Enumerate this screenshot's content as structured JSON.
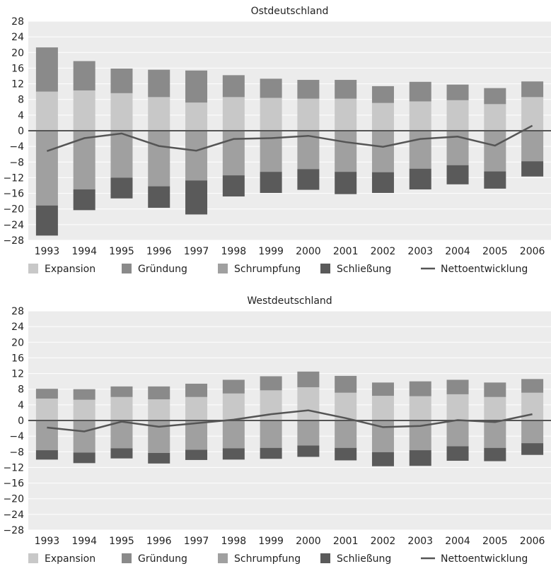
{
  "chart_data": [
    {
      "type": "bar",
      "title": "Ostdeutschland",
      "categories": [
        "1993",
        "1994",
        "1995",
        "1996",
        "1997",
        "1998",
        "1999",
        "2000",
        "2001",
        "2002",
        "2003",
        "2004",
        "2005",
        "2006"
      ],
      "ylim": [
        -28,
        28
      ],
      "yticks": [
        28,
        24,
        20,
        16,
        12,
        8,
        4,
        0,
        -4,
        -8,
        -12,
        -16,
        -20,
        -24,
        -28
      ],
      "stacked": true,
      "grid": true,
      "legend_position": "bottom",
      "series": [
        {
          "name": "Expansion",
          "color": "#c8c8c8",
          "values": [
            10.0,
            10.3,
            9.6,
            8.6,
            7.2,
            8.6,
            8.4,
            8.2,
            8.2,
            7.1,
            7.5,
            7.8,
            6.8,
            8.6
          ]
        },
        {
          "name": "Gründung",
          "color": "#8a8a8a",
          "values": [
            11.3,
            7.5,
            6.3,
            7.0,
            8.2,
            5.6,
            4.9,
            4.8,
            4.8,
            4.3,
            5.0,
            4.0,
            4.1,
            4.0
          ]
        },
        {
          "name": "Schrumpfung",
          "color": "#a0a0a0",
          "values": [
            -19.1,
            -15.0,
            -12.0,
            -14.2,
            -12.7,
            -11.4,
            -10.5,
            -9.8,
            -10.5,
            -10.6,
            -9.7,
            -8.8,
            -10.4,
            -7.8
          ]
        },
        {
          "name": "Schließung",
          "color": "#5a5a5a",
          "values": [
            -7.7,
            -5.3,
            -5.3,
            -5.5,
            -8.7,
            -5.4,
            -5.4,
            -5.3,
            -5.7,
            -5.3,
            -5.3,
            -4.9,
            -4.4,
            -3.9
          ]
        },
        {
          "name": "Nettoentwicklung",
          "type": "line",
          "color": "#555555",
          "values": [
            -5.2,
            -1.9,
            -0.7,
            -3.9,
            -5.1,
            -2.1,
            -1.9,
            -1.3,
            -2.9,
            -4.1,
            -2.1,
            -1.5,
            -3.8,
            1.3
          ]
        }
      ]
    },
    {
      "type": "bar",
      "title": "Westdeutschland",
      "categories": [
        "1993",
        "1994",
        "1995",
        "1996",
        "1997",
        "1998",
        "1999",
        "2000",
        "2001",
        "2002",
        "2003",
        "2004",
        "2005",
        "2006"
      ],
      "ylim": [
        -28,
        28
      ],
      "yticks": [
        28,
        24,
        20,
        16,
        12,
        8,
        4,
        0,
        -4,
        -8,
        -12,
        -16,
        -20,
        -24,
        -28
      ],
      "stacked": true,
      "grid": true,
      "legend_position": "bottom",
      "series": [
        {
          "name": "Expansion",
          "color": "#c8c8c8",
          "values": [
            5.6,
            5.3,
            6.0,
            5.4,
            6.0,
            6.9,
            7.7,
            8.5,
            7.1,
            6.3,
            6.2,
            6.7,
            6.0,
            7.1
          ]
        },
        {
          "name": "Gründung",
          "color": "#8a8a8a",
          "values": [
            2.5,
            2.7,
            2.7,
            3.3,
            3.4,
            3.5,
            3.6,
            4.0,
            4.3,
            3.4,
            3.8,
            3.7,
            3.7,
            3.5
          ]
        },
        {
          "name": "Schrumpfung",
          "color": "#a0a0a0",
          "values": [
            -7.6,
            -8.2,
            -7.1,
            -8.3,
            -7.5,
            -7.1,
            -7.0,
            -6.4,
            -7.0,
            -8.1,
            -7.6,
            -6.6,
            -7.0,
            -5.8
          ]
        },
        {
          "name": "Schließung",
          "color": "#5a5a5a",
          "values": [
            -2.4,
            -2.7,
            -2.6,
            -2.7,
            -2.6,
            -2.9,
            -2.8,
            -2.9,
            -3.2,
            -3.6,
            -4.0,
            -3.7,
            -3.4,
            -3.0
          ]
        },
        {
          "name": "Nettoentwicklung",
          "type": "line",
          "color": "#555555",
          "values": [
            -1.8,
            -2.8,
            -0.3,
            -1.6,
            -0.7,
            0.2,
            1.6,
            2.6,
            0.6,
            -1.7,
            -1.4,
            0.1,
            -0.4,
            1.6
          ]
        }
      ]
    }
  ]
}
